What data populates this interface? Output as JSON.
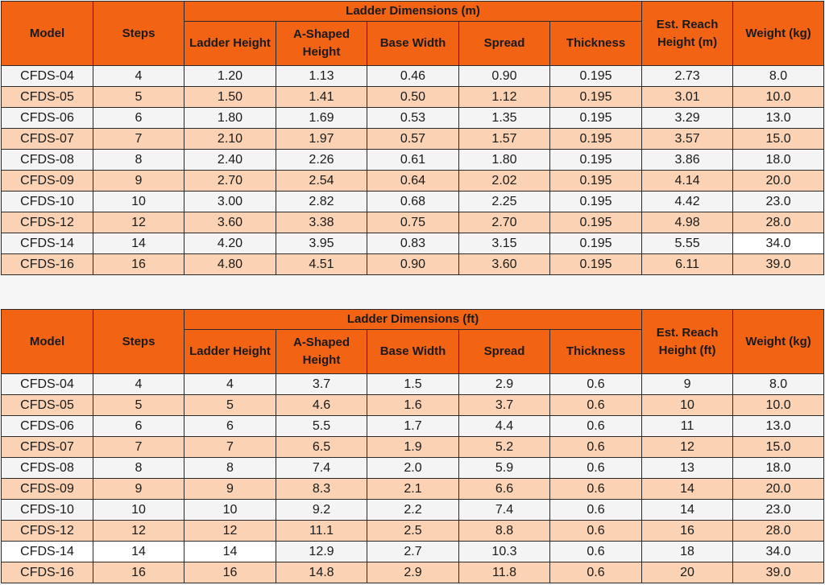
{
  "header": {
    "model": "Model",
    "steps": "Steps",
    "ladder_height": "Ladder Height",
    "a_shaped_height": "A-Shaped Height",
    "base_width": "Base Width",
    "spread": "Spread",
    "thickness": "Thickness",
    "weight": "Weight (kg)"
  },
  "table_m": {
    "group_title": "Ladder Dimensions (m)",
    "reach_title": "Est. Reach Height (m)",
    "rows": [
      [
        "CFDS-04",
        "4",
        "1.20",
        "1.13",
        "0.46",
        "0.90",
        "0.195",
        "2.73",
        "8.0"
      ],
      [
        "CFDS-05",
        "5",
        "1.50",
        "1.41",
        "0.50",
        "1.12",
        "0.195",
        "3.01",
        "10.0"
      ],
      [
        "CFDS-06",
        "6",
        "1.80",
        "1.69",
        "0.53",
        "1.35",
        "0.195",
        "3.29",
        "13.0"
      ],
      [
        "CFDS-07",
        "7",
        "2.10",
        "1.97",
        "0.57",
        "1.57",
        "0.195",
        "3.57",
        "15.0"
      ],
      [
        "CFDS-08",
        "8",
        "2.40",
        "2.26",
        "0.61",
        "1.80",
        "0.195",
        "3.86",
        "18.0"
      ],
      [
        "CFDS-09",
        "9",
        "2.70",
        "2.54",
        "0.64",
        "2.02",
        "0.195",
        "4.14",
        "20.0"
      ],
      [
        "CFDS-10",
        "10",
        "3.00",
        "2.82",
        "0.68",
        "2.25",
        "0.195",
        "4.42",
        "23.0"
      ],
      [
        "CFDS-12",
        "12",
        "3.60",
        "3.38",
        "0.75",
        "2.70",
        "0.195",
        "4.98",
        "28.0"
      ],
      [
        "CFDS-14",
        "14",
        "4.20",
        "3.95",
        "0.83",
        "3.15",
        "0.195",
        "5.55",
        "34.0"
      ],
      [
        "CFDS-16",
        "16",
        "4.80",
        "4.51",
        "0.90",
        "3.60",
        "0.195",
        "6.11",
        "39.0"
      ]
    ]
  },
  "table_ft": {
    "group_title": "Ladder Dimensions (ft)",
    "reach_title": "Est. Reach Height (ft)",
    "rows": [
      [
        "CFDS-04",
        "4",
        "4",
        "3.7",
        "1.5",
        "2.9",
        "0.6",
        "9",
        "8.0"
      ],
      [
        "CFDS-05",
        "5",
        "5",
        "4.6",
        "1.6",
        "3.7",
        "0.6",
        "10",
        "10.0"
      ],
      [
        "CFDS-06",
        "6",
        "6",
        "5.5",
        "1.7",
        "4.4",
        "0.6",
        "11",
        "13.0"
      ],
      [
        "CFDS-07",
        "7",
        "7",
        "6.5",
        "1.9",
        "5.2",
        "0.6",
        "12",
        "15.0"
      ],
      [
        "CFDS-08",
        "8",
        "8",
        "7.4",
        "2.0",
        "5.9",
        "0.6",
        "13",
        "18.0"
      ],
      [
        "CFDS-09",
        "9",
        "9",
        "8.3",
        "2.1",
        "6.6",
        "0.6",
        "14",
        "20.0"
      ],
      [
        "CFDS-10",
        "10",
        "10",
        "9.2",
        "2.2",
        "7.4",
        "0.6",
        "14",
        "23.0"
      ],
      [
        "CFDS-12",
        "12",
        "12",
        "11.1",
        "2.5",
        "8.8",
        "0.6",
        "16",
        "28.0"
      ],
      [
        "CFDS-14",
        "14",
        "14",
        "12.9",
        "2.7",
        "10.3",
        "0.6",
        "18",
        "34.0"
      ],
      [
        "CFDS-16",
        "16",
        "16",
        "14.8",
        "2.9",
        "11.8",
        "0.6",
        "20",
        "39.0"
      ]
    ]
  },
  "colors": {
    "header_bg": "#f26313",
    "row_alt": "#fbd3b4",
    "row_base": "#f4f4f4"
  }
}
